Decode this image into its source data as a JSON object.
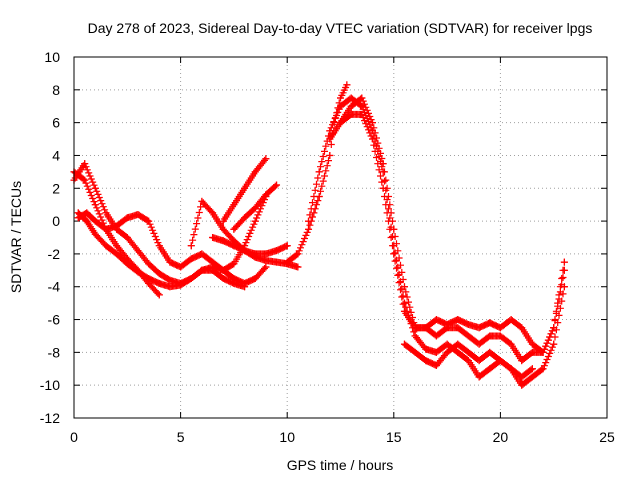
{
  "chart_data": {
    "type": "scatter",
    "title": "Day 278 of 2023, Sidereal Day-to-day VTEC variation (SDTVAR) for receiver lpgs",
    "xlabel": "GPS time / hours",
    "ylabel": "SDTVAR / TECUs",
    "xlim": [
      0,
      25
    ],
    "ylim": [
      -12,
      10
    ],
    "xticks": [
      0,
      5,
      10,
      15,
      20,
      25
    ],
    "yticks": [
      -12,
      -10,
      -8,
      -6,
      -4,
      -2,
      0,
      2,
      4,
      6,
      8,
      10
    ],
    "grid": true,
    "marker": "+",
    "series_color": "#ff0000",
    "series": [
      {
        "name": "trace-1",
        "x": [
          0.0,
          0.5,
          1.0,
          1.5,
          2.0,
          2.5,
          3.0,
          3.5,
          4.0
        ],
        "y": [
          3.0,
          2.5,
          1.0,
          -0.5,
          -1.5,
          -2.3,
          -3.0,
          -3.8,
          -4.5
        ]
      },
      {
        "name": "trace-2",
        "x": [
          0.0,
          0.5,
          1.0,
          1.5,
          2.0,
          2.5,
          3.0,
          3.5,
          4.0,
          4.5,
          5.0,
          5.5,
          6.0,
          6.5,
          7.0,
          7.5,
          8.0,
          8.5,
          9.0
        ],
        "y": [
          2.5,
          3.5,
          2.0,
          0.5,
          -0.5,
          -1.0,
          -1.8,
          -2.6,
          -3.2,
          -3.6,
          -3.8,
          -3.5,
          -3.0,
          -2.8,
          -3.0,
          -3.5,
          -3.8,
          -3.5,
          -2.8
        ]
      },
      {
        "name": "trace-3",
        "x": [
          0.2,
          0.6,
          1.0,
          1.5,
          2.0,
          2.5,
          3.0,
          3.5,
          4.0,
          4.5,
          5.0,
          5.5,
          6.0,
          6.5,
          7.0,
          7.5,
          8.0
        ],
        "y": [
          0.5,
          0.0,
          -0.8,
          -1.5,
          -2.0,
          -2.6,
          -3.1,
          -3.5,
          -3.8,
          -4.0,
          -3.9,
          -3.5,
          -3.0,
          -3.0,
          -3.5,
          -3.8,
          -4.0
        ]
      },
      {
        "name": "trace-4",
        "x": [
          0.2,
          0.6,
          1.0,
          1.5,
          2.0,
          2.5,
          3.0,
          3.5,
          4.0,
          4.5,
          5.0,
          5.5,
          6.0,
          6.5,
          7.0,
          7.5,
          8.0,
          8.5,
          9.0
        ],
        "y": [
          0.2,
          0.5,
          0.0,
          -0.5,
          -0.3,
          0.2,
          0.4,
          0.0,
          -1.5,
          -2.5,
          -2.8,
          -2.3,
          -2.0,
          -2.5,
          -3.0,
          -2.6,
          -1.5,
          0.0,
          1.5
        ]
      },
      {
        "name": "trace-5",
        "x": [
          5.5,
          6.0,
          6.5,
          7.0,
          7.5,
          8.0,
          8.5,
          9.0,
          9.5,
          10.0,
          10.5
        ],
        "y": [
          -1.5,
          1.2,
          0.5,
          -0.5,
          -1.2,
          -1.8,
          -2.2,
          -2.4,
          -2.5,
          -2.6,
          -2.8
        ]
      },
      {
        "name": "trace-6",
        "x": [
          6.5,
          7.0,
          7.5,
          8.0,
          8.5,
          9.0,
          9.5,
          10.0
        ],
        "y": [
          -1.0,
          -1.2,
          -1.5,
          -1.8,
          -2.0,
          -2.0,
          -1.8,
          -1.5
        ]
      },
      {
        "name": "trace-7",
        "x": [
          7.0,
          7.5,
          8.0,
          8.5,
          9.0
        ],
        "y": [
          0.0,
          1.0,
          2.0,
          3.0,
          3.8
        ]
      },
      {
        "name": "trace-8",
        "x": [
          7.5,
          8.0,
          8.5,
          9.0,
          9.5
        ],
        "y": [
          -0.5,
          0.2,
          0.8,
          1.6,
          2.2
        ]
      },
      {
        "name": "trace-9",
        "x": [
          10.0,
          10.5,
          11.0,
          11.5,
          12.0,
          12.2,
          12.5,
          12.8
        ],
        "y": [
          -2.5,
          -2.0,
          -0.5,
          1.5,
          4.0,
          6.0,
          7.5,
          8.3
        ]
      },
      {
        "name": "trace-10",
        "x": [
          11.0,
          11.5,
          12.0,
          12.5,
          13.0,
          13.5,
          14.0,
          14.5,
          15.0,
          15.5,
          16.0,
          16.5,
          17.0,
          17.5,
          18.0,
          18.5,
          19.0,
          19.5,
          20.0,
          20.5,
          21.0,
          21.5,
          22.0,
          22.5,
          23.0
        ],
        "y": [
          0.0,
          3.0,
          5.5,
          7.0,
          7.5,
          7.0,
          5.5,
          3.0,
          -1.5,
          -5.0,
          -7.0,
          -7.8,
          -8.0,
          -7.5,
          -8.0,
          -8.5,
          -9.5,
          -9.0,
          -8.5,
          -9.0,
          -10.0,
          -9.5,
          -9.0,
          -7.5,
          -4.0
        ]
      },
      {
        "name": "trace-11",
        "x": [
          12.0,
          12.5,
          13.0,
          13.5,
          14.0,
          14.5,
          15.0,
          15.5,
          16.0,
          16.5,
          17.0,
          17.5,
          18.0,
          18.5,
          19.0,
          19.5,
          20.0,
          20.5,
          21.0,
          21.5,
          22.0,
          22.5,
          23.0
        ],
        "y": [
          5.0,
          6.0,
          6.5,
          6.5,
          5.0,
          2.0,
          -2.0,
          -5.5,
          -6.5,
          -6.5,
          -7.0,
          -6.5,
          -6.5,
          -7.0,
          -7.5,
          -7.0,
          -7.0,
          -7.5,
          -8.5,
          -8.0,
          -8.0,
          -6.5,
          -2.5
        ]
      },
      {
        "name": "trace-12",
        "x": [
          12.5,
          13.0,
          13.5,
          14.0,
          14.5,
          15.0,
          15.5,
          16.0,
          16.5,
          17.0,
          17.5,
          18.0,
          18.5,
          19.0,
          19.5,
          20.0,
          20.5,
          21.0,
          21.5,
          22.0,
          22.5,
          23.0
        ],
        "y": [
          6.0,
          7.0,
          7.5,
          6.0,
          3.5,
          -0.5,
          -4.0,
          -6.5,
          -6.5,
          -6.0,
          -6.3,
          -6.0,
          -6.3,
          -6.5,
          -6.2,
          -6.5,
          -6.0,
          -6.5,
          -7.5,
          -8.0,
          -6.5,
          -3.0
        ]
      },
      {
        "name": "trace-13",
        "x": [
          15.5,
          16.0,
          16.5,
          17.0,
          17.5,
          18.0,
          18.5,
          19.0,
          19.5,
          20.0,
          20.5,
          21.0,
          21.5
        ],
        "y": [
          -7.5,
          -8.0,
          -8.5,
          -8.8,
          -8.0,
          -7.5,
          -8.0,
          -8.5,
          -8.0,
          -8.5,
          -9.0,
          -9.5,
          -9.0
        ]
      }
    ]
  }
}
